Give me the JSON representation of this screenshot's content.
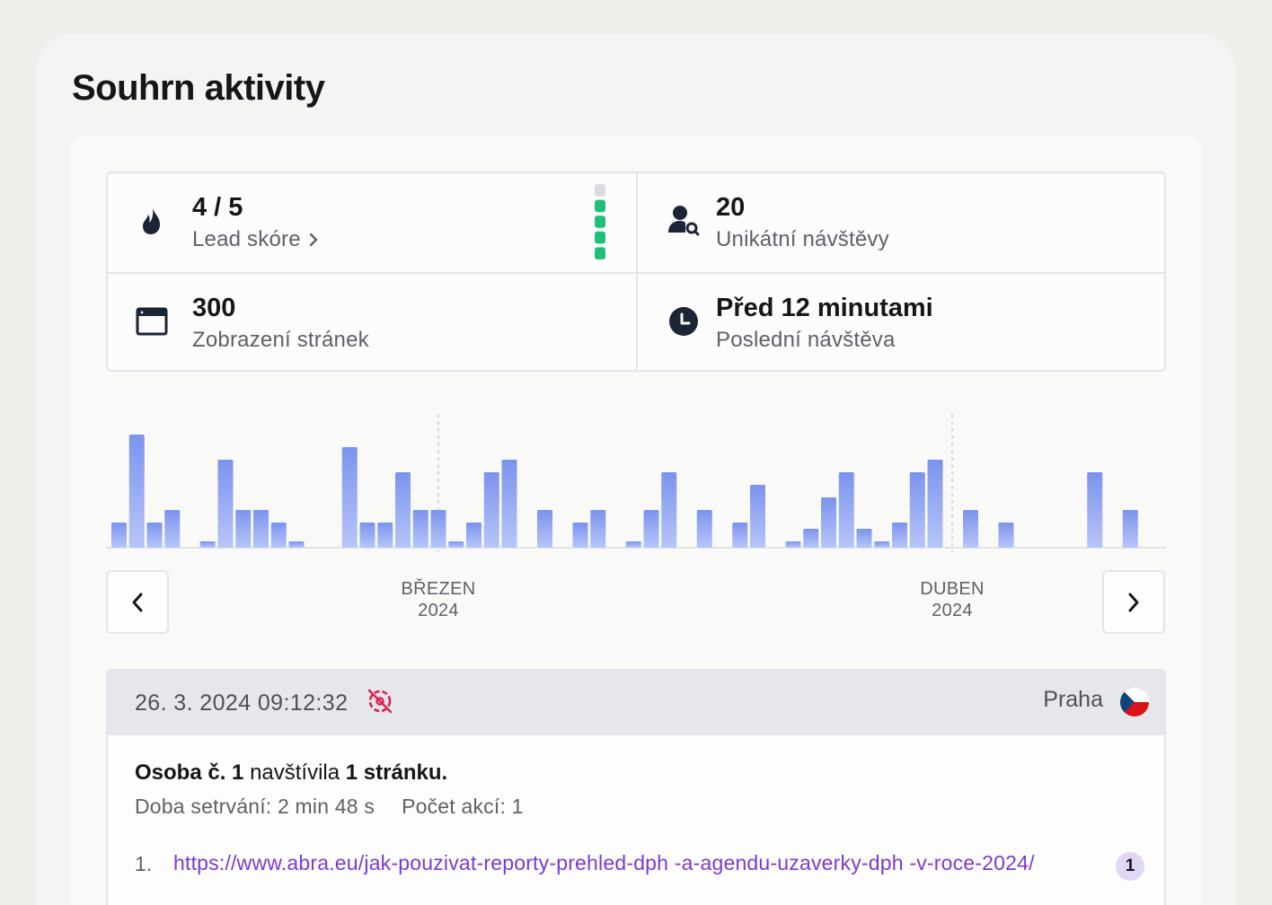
{
  "page": {
    "title": "Souhrn aktivity"
  },
  "stats": [
    {
      "value": "4 / 5",
      "label": "Lead skóre",
      "icon": "flame-icon"
    },
    {
      "value": "20",
      "label": "Unikátní návštěvy",
      "icon": "person-search-icon"
    },
    {
      "value": "300",
      "label": "Zobrazení stránek",
      "icon": "browser-window-icon"
    },
    {
      "value": "Před 12 minutami",
      "label": "Poslední návštěva",
      "icon": "clock-icon"
    }
  ],
  "lead_score_meter": {
    "filled": 4,
    "total": 5,
    "fill_color": "#1fbf7a",
    "empty_color": "#d9dbde"
  },
  "chart": {
    "months": [
      {
        "month": "BŘEZEN",
        "year": "2024"
      },
      {
        "month": "DUBEN",
        "year": "2024"
      }
    ]
  },
  "chart_data": {
    "type": "bar",
    "values": [
      2,
      9,
      2,
      3,
      0,
      0.5,
      7,
      3,
      3,
      2,
      0.5,
      0,
      0,
      8,
      2,
      2,
      6,
      3,
      3,
      0.5,
      2,
      6,
      7,
      0,
      3,
      0,
      2,
      3,
      0,
      0.5,
      3,
      6,
      0,
      3,
      0,
      2,
      5,
      0,
      0.5,
      1.5,
      4,
      6,
      1.5,
      0.5,
      2,
      6,
      7,
      0,
      3,
      0,
      2,
      0,
      0,
      0,
      0,
      6,
      0,
      3
    ],
    "colors": {
      "top": "#7b93ee",
      "bottom": "#b7c5f8"
    },
    "grid": false
  },
  "visit": {
    "datetime": "26. 3. 2024 09:12:32",
    "city": "Praha",
    "person": "Osoba č. 1",
    "verb": "navštívila",
    "pages_count": "1 stránku.",
    "duration": "Doba setrvání: 2 min 48 s",
    "actions": "Počet akcí: 1",
    "pages": [
      {
        "num": "1.",
        "url": "https://www.abra.eu/jak-pouzivat-reporty-prehled-dph -a-agendu-uzaverky-dph -v-roce-2024/",
        "count": "1"
      }
    ]
  },
  "colors": {
    "accent_link": "#7b3bd0",
    "no_tracking_icon": "#d9264f"
  }
}
